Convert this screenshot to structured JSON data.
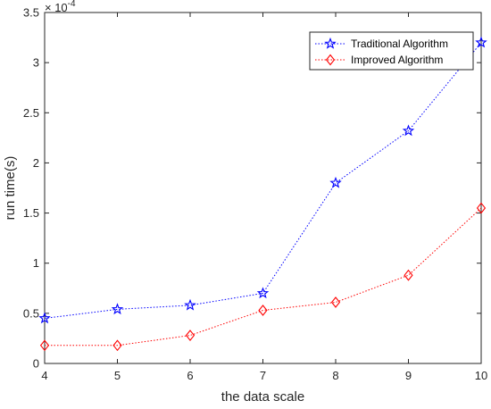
{
  "chart_data": {
    "type": "line",
    "xlabel": "the data scale",
    "ylabel": "run time(s)",
    "x": [
      4,
      5,
      6,
      7,
      8,
      9,
      10
    ],
    "xlim": [
      4,
      10
    ],
    "ylim": [
      0,
      0.00035
    ],
    "x_ticks": [
      "4",
      "5",
      "6",
      "7",
      "8",
      "9",
      "10"
    ],
    "y_ticks": [
      "0",
      "0.5",
      "1",
      "1.5",
      "2",
      "2.5",
      "3",
      "3.5"
    ],
    "y_exponent_label": "× 10",
    "y_exponent_power": "-4",
    "grid": false,
    "legend_position": "top-right",
    "series": [
      {
        "name": "Traditional Algorithm",
        "color": "#0000ff",
        "marker": "star",
        "linestyle": "dotted",
        "values": [
          4.5e-05,
          5.4e-05,
          5.8e-05,
          7e-05,
          0.00018,
          0.000232,
          0.00032
        ]
      },
      {
        "name": "Improved Algorithm",
        "color": "#ff0000",
        "marker": "diamond",
        "linestyle": "dotted",
        "values": [
          1.8e-05,
          1.8e-05,
          2.8e-05,
          5.3e-05,
          6.1e-05,
          8.8e-05,
          0.000155
        ]
      }
    ]
  }
}
